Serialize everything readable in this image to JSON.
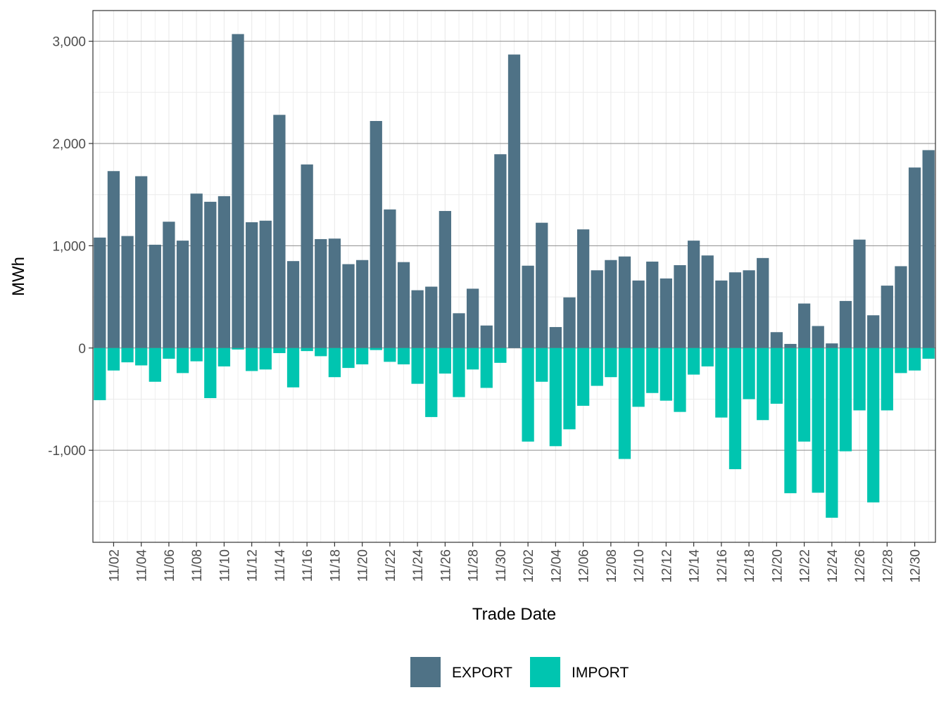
{
  "chart_data": {
    "type": "bar",
    "xlabel": "Trade Date",
    "ylabel": "MWh",
    "x": [
      "11/01",
      "11/02",
      "11/03",
      "11/04",
      "11/05",
      "11/06",
      "11/07",
      "11/08",
      "11/09",
      "11/10",
      "11/11",
      "11/12",
      "11/13",
      "11/14",
      "11/15",
      "11/16",
      "11/17",
      "11/18",
      "11/19",
      "11/20",
      "11/21",
      "11/22",
      "11/23",
      "11/24",
      "11/25",
      "11/26",
      "11/27",
      "11/28",
      "11/29",
      "11/30",
      "12/01",
      "12/02",
      "12/03",
      "12/04",
      "12/05",
      "12/06",
      "12/07",
      "12/08",
      "12/09",
      "12/10",
      "12/11",
      "12/12",
      "12/13",
      "12/14",
      "12/15",
      "12/16",
      "12/17",
      "12/18",
      "12/19",
      "12/20",
      "12/21",
      "12/22",
      "12/23",
      "12/24",
      "12/25",
      "12/26",
      "12/27",
      "12/28",
      "12/29",
      "12/30",
      "12/31"
    ],
    "x_tick_labels": [
      "11/02",
      "11/04",
      "11/06",
      "11/08",
      "11/10",
      "11/12",
      "11/14",
      "11/16",
      "11/18",
      "11/20",
      "11/22",
      "11/24",
      "11/26",
      "11/28",
      "11/30",
      "12/02",
      "12/04",
      "12/06",
      "12/08",
      "12/10",
      "12/12",
      "12/14",
      "12/16",
      "12/18",
      "12/20",
      "12/22",
      "12/24",
      "12/26",
      "12/28",
      "12/30"
    ],
    "ylim": [
      -1900,
      3300
    ],
    "y_ticks": [
      -1000,
      0,
      1000,
      2000,
      3000
    ],
    "y_tick_labels": [
      "-1,000",
      "0",
      "1,000",
      "2,000",
      "3,000"
    ],
    "grid": true,
    "legend_position": "bottom",
    "series": [
      {
        "name": "EXPORT",
        "color": "#4f7286",
        "values": [
          1080,
          1730,
          1095,
          1680,
          1010,
          1235,
          1050,
          1510,
          1430,
          1485,
          3070,
          1230,
          1245,
          2280,
          850,
          1795,
          1065,
          1070,
          820,
          860,
          2220,
          1355,
          840,
          565,
          600,
          1340,
          340,
          580,
          220,
          1895,
          2870,
          805,
          1225,
          205,
          495,
          1160,
          760,
          860,
          895,
          660,
          845,
          680,
          810,
          1050,
          905,
          660,
          740,
          760,
          880,
          155,
          40,
          435,
          215,
          45,
          460,
          1060,
          320,
          610,
          800,
          1765,
          1935
        ]
      },
      {
        "name": "IMPORT",
        "color": "#00c5b0",
        "values": [
          -510,
          -220,
          -140,
          -170,
          -330,
          -105,
          -245,
          -130,
          -490,
          -180,
          -15,
          -225,
          -210,
          -50,
          -385,
          -30,
          -80,
          -285,
          -195,
          -160,
          -20,
          -135,
          -160,
          -350,
          -675,
          -250,
          -480,
          -210,
          -390,
          -145,
          0,
          -915,
          -330,
          -960,
          -795,
          -565,
          -370,
          -285,
          -1085,
          -575,
          -440,
          -515,
          -625,
          -260,
          -180,
          -680,
          -1185,
          -500,
          -705,
          -545,
          -1420,
          -915,
          -1415,
          -1660,
          -1010,
          -610,
          -1510,
          -610,
          -245,
          -220,
          -105
        ]
      }
    ]
  }
}
